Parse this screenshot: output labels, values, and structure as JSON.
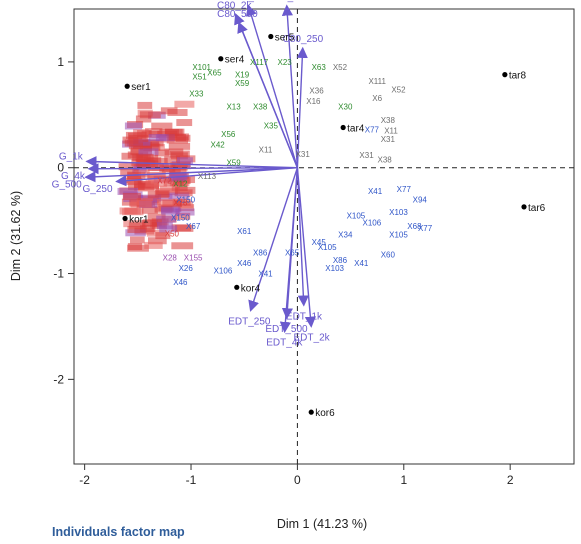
{
  "caption": "Individuals factor map",
  "chart_data": {
    "type": "scatter",
    "title": "",
    "xlabel": "Dim 1 (41.23 %)",
    "ylabel": "Dim 2 (31.62 %)",
    "xlim": [
      -2.1,
      2.6
    ],
    "ylim": [
      -2.8,
      1.5
    ],
    "xticks": [
      -2,
      -1,
      0,
      1,
      2
    ],
    "yticks": [
      -2,
      -1,
      0,
      1
    ],
    "grid": false,
    "reference_lines": {
      "x": 0,
      "y": 0,
      "style": "dashed"
    },
    "colors": {
      "individuals": "#000000",
      "variables": "#6a5acd",
      "group_green": "#2e8b2e",
      "group_gray": "#6e6e6e",
      "group_blue": "#2f55c8",
      "group_red": "#d83a3a",
      "group_purple": "#9a4fb0",
      "caption": "#2f5d9a"
    },
    "individuals": [
      {
        "label": "ser1",
        "x": -1.6,
        "y": 0.77
      },
      {
        "label": "ser4",
        "x": -0.72,
        "y": 1.03
      },
      {
        "label": "ser5",
        "x": -0.25,
        "y": 1.24
      },
      {
        "label": "tar8",
        "x": 1.95,
        "y": 0.88
      },
      {
        "label": "tar4",
        "x": 0.43,
        "y": 0.38
      },
      {
        "label": "tar6",
        "x": 2.13,
        "y": -0.37
      },
      {
        "label": "kor1",
        "x": -1.62,
        "y": -0.48
      },
      {
        "label": "kor4",
        "x": -0.57,
        "y": -1.13
      },
      {
        "label": "kor6",
        "x": 0.13,
        "y": -2.31
      }
    ],
    "variables": [
      {
        "label": "C80_1k",
        "x": -0.46,
        "y": 1.53
      },
      {
        "label": "C80_4k",
        "x": -0.1,
        "y": 1.53
      },
      {
        "label": "C80_2k",
        "x": -0.58,
        "y": 1.45
      },
      {
        "label": "C80_500",
        "x": -0.55,
        "y": 1.37
      },
      {
        "label": "C80_250",
        "x": 0.05,
        "y": 1.13
      },
      {
        "label": "G_1k",
        "x": -1.98,
        "y": 0.06
      },
      {
        "label": "G_4k",
        "x": -1.96,
        "y": -0.01
      },
      {
        "label": "G_500",
        "x": -1.99,
        "y": -0.09
      },
      {
        "label": "G_250",
        "x": -1.7,
        "y": -0.13
      },
      {
        "label": "EDT_250",
        "x": -0.44,
        "y": -1.35
      },
      {
        "label": "EDT_500",
        "x": -0.1,
        "y": -1.42
      },
      {
        "label": "EDT_1k",
        "x": 0.06,
        "y": -1.3
      },
      {
        "label": "EDT_2k",
        "x": 0.13,
        "y": -1.5
      },
      {
        "label": "EDT_4k",
        "x": -0.12,
        "y": -1.55
      }
    ],
    "point_labels": [
      {
        "label": "X101",
        "x": -0.9,
        "y": 0.95,
        "group": "green"
      },
      {
        "label": "X65",
        "x": -0.78,
        "y": 0.9,
        "group": "green"
      },
      {
        "label": "X51",
        "x": -0.92,
        "y": 0.86,
        "group": "green"
      },
      {
        "label": "X19",
        "x": -0.52,
        "y": 0.88,
        "group": "green"
      },
      {
        "label": "X59",
        "x": -0.52,
        "y": 0.8,
        "group": "green"
      },
      {
        "label": "X117",
        "x": -0.36,
        "y": 1.0,
        "group": "green"
      },
      {
        "label": "X33",
        "x": -0.95,
        "y": 0.7,
        "group": "green"
      },
      {
        "label": "X13",
        "x": -0.6,
        "y": 0.58,
        "group": "green"
      },
      {
        "label": "X38",
        "x": -0.35,
        "y": 0.58,
        "group": "green"
      },
      {
        "label": "X56",
        "x": -0.65,
        "y": 0.32,
        "group": "green"
      },
      {
        "label": "X42",
        "x": -0.75,
        "y": 0.22,
        "group": "green"
      },
      {
        "label": "X59",
        "x": -0.6,
        "y": 0.05,
        "group": "green"
      },
      {
        "label": "X12",
        "x": -1.1,
        "y": -0.15,
        "group": "green"
      },
      {
        "label": "X23",
        "x": -0.12,
        "y": 1.0,
        "group": "green"
      },
      {
        "label": "X63",
        "x": 0.2,
        "y": 0.95,
        "group": "green"
      },
      {
        "label": "X35",
        "x": -0.25,
        "y": 0.4,
        "group": "green"
      },
      {
        "label": "X30",
        "x": 0.45,
        "y": 0.58,
        "group": "green"
      },
      {
        "label": "X52",
        "x": 0.4,
        "y": 0.95,
        "group": "gray"
      },
      {
        "label": "X111",
        "x": 0.75,
        "y": 0.82,
        "group": "gray"
      },
      {
        "label": "X52",
        "x": 0.95,
        "y": 0.74,
        "group": "gray"
      },
      {
        "label": "X6",
        "x": 0.75,
        "y": 0.66,
        "group": "gray"
      },
      {
        "label": "X36",
        "x": 0.18,
        "y": 0.73,
        "group": "gray"
      },
      {
        "label": "X16",
        "x": 0.15,
        "y": 0.63,
        "group": "gray"
      },
      {
        "label": "X38",
        "x": 0.85,
        "y": 0.45,
        "group": "gray"
      },
      {
        "label": "X11",
        "x": 0.88,
        "y": 0.35,
        "group": "gray"
      },
      {
        "label": "X31",
        "x": 0.85,
        "y": 0.27,
        "group": "gray"
      },
      {
        "label": "X31",
        "x": 0.65,
        "y": 0.12,
        "group": "gray"
      },
      {
        "label": "X38",
        "x": 0.82,
        "y": 0.08,
        "group": "gray"
      },
      {
        "label": "X11",
        "x": -0.3,
        "y": 0.17,
        "group": "gray"
      },
      {
        "label": "X31",
        "x": 0.05,
        "y": 0.13,
        "group": "gray"
      },
      {
        "label": "X77",
        "x": 0.7,
        "y": 0.36,
        "group": "blue"
      },
      {
        "label": "X41",
        "x": 0.73,
        "y": -0.22,
        "group": "blue"
      },
      {
        "label": "X77",
        "x": 1.0,
        "y": -0.2,
        "group": "blue"
      },
      {
        "label": "X94",
        "x": 1.15,
        "y": -0.3,
        "group": "blue"
      },
      {
        "label": "X105",
        "x": 0.55,
        "y": -0.45,
        "group": "blue"
      },
      {
        "label": "X106",
        "x": 0.7,
        "y": -0.52,
        "group": "blue"
      },
      {
        "label": "X103",
        "x": 0.95,
        "y": -0.42,
        "group": "blue"
      },
      {
        "label": "X34",
        "x": 0.45,
        "y": -0.63,
        "group": "blue"
      },
      {
        "label": "X105",
        "x": 0.95,
        "y": -0.63,
        "group": "blue"
      },
      {
        "label": "X68",
        "x": 1.1,
        "y": -0.55,
        "group": "blue"
      },
      {
        "label": "X77",
        "x": 1.2,
        "y": -0.57,
        "group": "blue"
      },
      {
        "label": "X60",
        "x": 0.85,
        "y": -0.82,
        "group": "blue"
      },
      {
        "label": "X86",
        "x": 0.4,
        "y": -0.87,
        "group": "blue"
      },
      {
        "label": "X41",
        "x": 0.6,
        "y": -0.9,
        "group": "blue"
      },
      {
        "label": "X103",
        "x": 0.35,
        "y": -0.95,
        "group": "blue"
      },
      {
        "label": "X45",
        "x": 0.2,
        "y": -0.7,
        "group": "blue"
      },
      {
        "label": "X105",
        "x": 0.28,
        "y": -0.75,
        "group": "blue"
      },
      {
        "label": "X61",
        "x": -0.5,
        "y": -0.6,
        "group": "blue"
      },
      {
        "label": "X46",
        "x": -0.5,
        "y": -0.9,
        "group": "blue"
      },
      {
        "label": "X106",
        "x": -0.7,
        "y": -0.97,
        "group": "blue"
      },
      {
        "label": "X26",
        "x": -1.05,
        "y": -0.95,
        "group": "blue"
      },
      {
        "label": "X46",
        "x": -1.1,
        "y": -1.08,
        "group": "blue"
      },
      {
        "label": "X86",
        "x": -0.35,
        "y": -0.8,
        "group": "blue"
      },
      {
        "label": "X65",
        "x": -0.05,
        "y": -0.8,
        "group": "blue"
      },
      {
        "label": "X41",
        "x": -0.3,
        "y": -1.0,
        "group": "blue"
      },
      {
        "label": "X67",
        "x": -0.98,
        "y": -0.55,
        "group": "blue"
      },
      {
        "label": "X150",
        "x": -1.1,
        "y": -0.47,
        "group": "blue"
      },
      {
        "label": "X150",
        "x": -1.05,
        "y": -0.3,
        "group": "blue"
      },
      {
        "label": "X78",
        "x": -1.1,
        "y": -0.33,
        "group": "red"
      },
      {
        "label": "X72",
        "x": -1.25,
        "y": -0.12,
        "group": "red"
      },
      {
        "label": "X50",
        "x": -1.18,
        "y": -0.62,
        "group": "red"
      },
      {
        "label": "X155",
        "x": -0.98,
        "y": -0.85,
        "group": "purple"
      },
      {
        "label": "X28",
        "x": -1.2,
        "y": -0.85,
        "group": "purple"
      },
      {
        "label": "X113",
        "x": -0.85,
        "y": -0.08,
        "group": "gray"
      }
    ]
  }
}
